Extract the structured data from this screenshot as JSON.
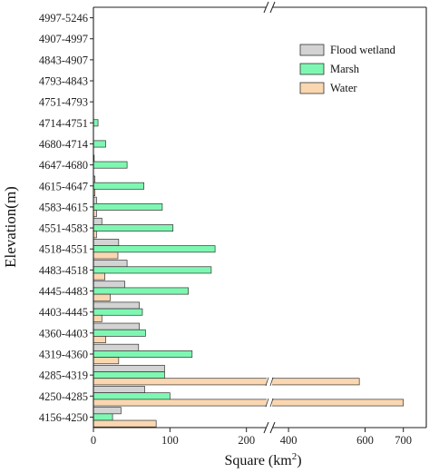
{
  "chart_data": {
    "type": "bar",
    "orientation": "horizontal",
    "categories": [
      "4156-4250",
      "4250-4285",
      "4285-4319",
      "4319-4360",
      "4360-4403",
      "4403-4445",
      "4445-4483",
      "4483-4518",
      "4518-4551",
      "4551-4583",
      "4583-4615",
      "4615-4647",
      "4647-4680",
      "4680-4714",
      "4714-4751",
      "4751-4793",
      "4793-4843",
      "4843-4907",
      "4907-4997",
      "4997-5246"
    ],
    "series": [
      {
        "name": "Flood wetland",
        "color": "#d3d3d3",
        "values": [
          36,
          67,
          93,
          59,
          60,
          60,
          41,
          44,
          33,
          11,
          4,
          2,
          1,
          0,
          0,
          0,
          0,
          0,
          0,
          0
        ]
      },
      {
        "name": "Marsh",
        "color": "#7ef7b2",
        "values": [
          25,
          100,
          93,
          129,
          68,
          64,
          124,
          154,
          159,
          104,
          90,
          66,
          44,
          16,
          6,
          0,
          0,
          0,
          0,
          0
        ]
      },
      {
        "name": "Water",
        "color": "#fad7b0",
        "values": [
          82,
          700,
          585,
          33,
          16,
          11,
          22,
          15,
          32,
          4,
          4,
          2,
          0,
          0,
          0,
          0,
          0,
          0,
          0,
          0
        ]
      }
    ],
    "xlabel": "Square (km",
    "xlabel_sup": "2",
    "xlabel_close": ")",
    "ylabel": "Elevation(m)",
    "x_axis": {
      "type": "broken",
      "segment1": {
        "range": [
          0,
          230
        ],
        "ticks": [
          0,
          100,
          200
        ]
      },
      "segment2": {
        "range": [
          350,
          760
        ],
        "ticks": [
          400,
          600,
          700
        ]
      }
    },
    "legend": {
      "position": "top-right",
      "order": [
        "Flood wetland",
        "Marsh",
        "Water"
      ]
    },
    "grid": false
  }
}
